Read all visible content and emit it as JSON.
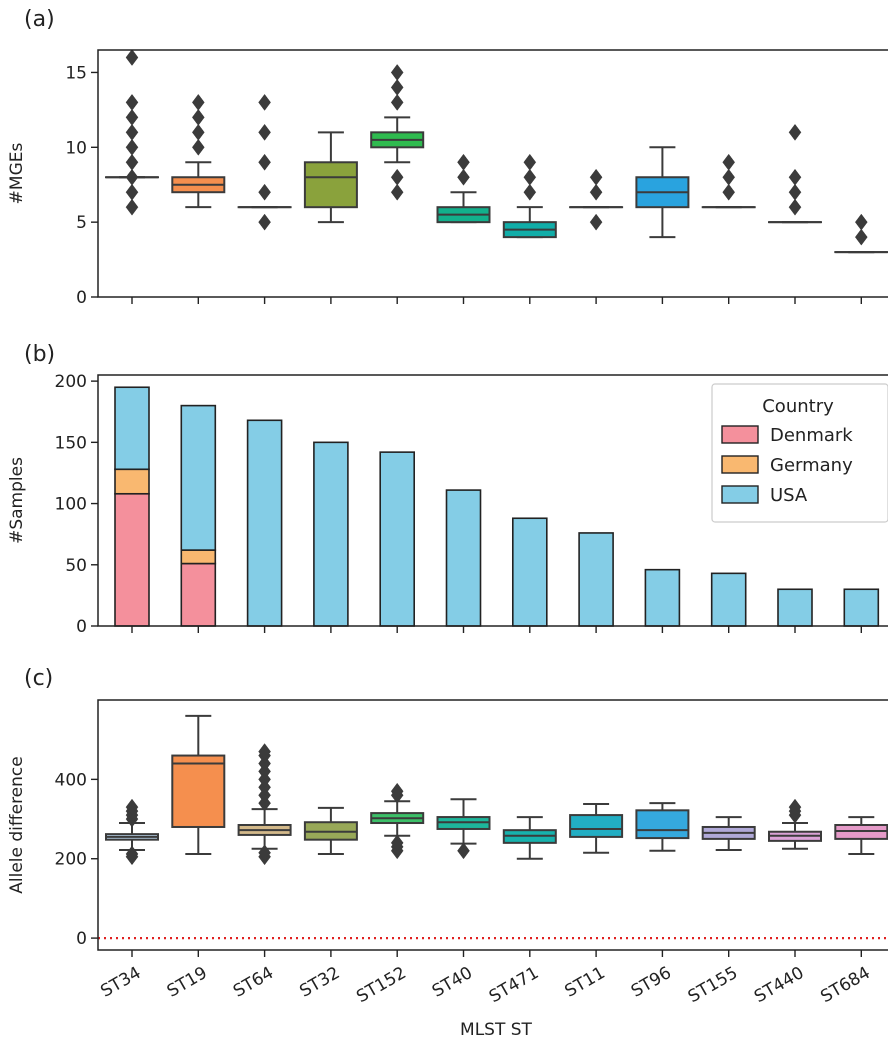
{
  "figure": {
    "xlabel": "MLST ST"
  },
  "chart_data": [
    {
      "panel": "(a)",
      "type": "box",
      "ylabel": "#MGEs",
      "ylim": [
        0,
        16.5
      ],
      "yticks": [
        0,
        5,
        10,
        15
      ],
      "categories": [
        "ST34",
        "ST19",
        "ST64",
        "ST32",
        "ST152",
        "ST40",
        "ST471",
        "ST11",
        "ST96",
        "ST155",
        "ST440",
        "ST684"
      ],
      "colors": [
        "#cfe0ef",
        "#f58f4e",
        "#cfdfb0",
        "#8aa23c",
        "#2fbb4f",
        "#12b08c",
        "#11ada8",
        "#2ba6b8",
        "#29a3df",
        "#86b8d8",
        "#a39ec9",
        "#e8a3cf"
      ],
      "boxes": [
        {
          "q1": 8,
          "median": 8,
          "q3": 8,
          "whislo": 8,
          "whishi": 8,
          "fliers": [
            6,
            7,
            8,
            9,
            10,
            11,
            12,
            13,
            16
          ]
        },
        {
          "q1": 7,
          "median": 7.5,
          "q3": 8,
          "whislo": 6,
          "whishi": 9,
          "fliers": [
            10,
            11,
            12,
            13
          ]
        },
        {
          "q1": 6,
          "median": 6,
          "q3": 6,
          "whislo": 6,
          "whishi": 6,
          "fliers": [
            5,
            7,
            9,
            11,
            13
          ]
        },
        {
          "q1": 6,
          "median": 8,
          "q3": 9,
          "whislo": 5,
          "whishi": 11,
          "fliers": []
        },
        {
          "q1": 10,
          "median": 10.5,
          "q3": 11,
          "whislo": 9,
          "whishi": 12,
          "fliers": [
            7,
            8,
            13,
            14,
            15
          ]
        },
        {
          "q1": 5,
          "median": 5.5,
          "q3": 6,
          "whislo": 5,
          "whishi": 7,
          "fliers": [
            8,
            9
          ]
        },
        {
          "q1": 4,
          "median": 4.5,
          "q3": 5,
          "whislo": 4,
          "whishi": 6,
          "fliers": [
            7,
            8,
            9
          ]
        },
        {
          "q1": 6,
          "median": 6,
          "q3": 6,
          "whislo": 6,
          "whishi": 6,
          "fliers": [
            5,
            7,
            8
          ]
        },
        {
          "q1": 6,
          "median": 7,
          "q3": 8,
          "whislo": 4,
          "whishi": 10,
          "fliers": []
        },
        {
          "q1": 6,
          "median": 6,
          "q3": 6,
          "whislo": 6,
          "whishi": 6,
          "fliers": [
            7,
            8,
            9
          ]
        },
        {
          "q1": 5,
          "median": 5,
          "q3": 5,
          "whislo": 5,
          "whishi": 5,
          "fliers": [
            6,
            7,
            8,
            11
          ]
        },
        {
          "q1": 3,
          "median": 3,
          "q3": 3,
          "whislo": 3,
          "whishi": 3,
          "fliers": [
            4,
            5
          ]
        }
      ]
    },
    {
      "panel": "(b)",
      "type": "bar",
      "stacked": true,
      "ylabel": "#Samples",
      "ylim": [
        0,
        205
      ],
      "yticks": [
        0,
        50,
        100,
        150,
        200
      ],
      "categories": [
        "ST34",
        "ST19",
        "ST64",
        "ST32",
        "ST152",
        "ST40",
        "ST471",
        "ST11",
        "ST96",
        "ST155",
        "ST440",
        "ST684"
      ],
      "series": [
        {
          "name": "Denmark",
          "color": "#f4909c",
          "values": [
            108,
            51,
            0,
            0,
            0,
            0,
            0,
            0,
            0,
            0,
            0,
            0
          ]
        },
        {
          "name": "Germany",
          "color": "#f9b870",
          "values": [
            20,
            11,
            0,
            0,
            0,
            0,
            0,
            0,
            0,
            0,
            0,
            0
          ]
        },
        {
          "name": "USA",
          "color": "#84cde6",
          "values": [
            67,
            118,
            168,
            150,
            142,
            111,
            88,
            76,
            46,
            43,
            30,
            30
          ]
        }
      ],
      "legend": {
        "title": "Country",
        "position": "top-right"
      }
    },
    {
      "panel": "(c)",
      "type": "box",
      "ylabel": "Allele difference",
      "ylim": [
        -30,
        600
      ],
      "yticks": [
        0,
        200,
        400
      ],
      "reference_line": {
        "y": 0,
        "color": "#e02020",
        "style": "dotted"
      },
      "categories": [
        "ST34",
        "ST19",
        "ST64",
        "ST32",
        "ST152",
        "ST40",
        "ST471",
        "ST11",
        "ST96",
        "ST155",
        "ST440",
        "ST684"
      ],
      "colors": [
        "#b8d3ea",
        "#f58f4e",
        "#d3b98a",
        "#98a858",
        "#3cbf68",
        "#1db69b",
        "#17b2ad",
        "#22aec3",
        "#35a9de",
        "#b0a9d8",
        "#dba2d8",
        "#e59ac8"
      ],
      "boxes": [
        {
          "q1": 248,
          "median": 255,
          "q3": 262,
          "whislo": 222,
          "whishi": 290,
          "fliers": [
            205,
            212,
            300,
            310,
            320,
            330
          ]
        },
        {
          "q1": 280,
          "median": 440,
          "q3": 460,
          "whislo": 212,
          "whishi": 560,
          "fliers": []
        },
        {
          "q1": 260,
          "median": 272,
          "q3": 285,
          "whislo": 225,
          "whishi": 325,
          "fliers": [
            205,
            215,
            340,
            360,
            380,
            400,
            420,
            440,
            460,
            470
          ]
        },
        {
          "q1": 248,
          "median": 268,
          "q3": 292,
          "whislo": 212,
          "whishi": 328,
          "fliers": []
        },
        {
          "q1": 290,
          "median": 302,
          "q3": 315,
          "whislo": 258,
          "whishi": 345,
          "fliers": [
            220,
            230,
            240,
            360,
            370
          ]
        },
        {
          "q1": 275,
          "median": 292,
          "q3": 305,
          "whislo": 238,
          "whishi": 350,
          "fliers": [
            220
          ]
        },
        {
          "q1": 240,
          "median": 258,
          "q3": 272,
          "whislo": 200,
          "whishi": 305,
          "fliers": []
        },
        {
          "q1": 255,
          "median": 275,
          "q3": 310,
          "whislo": 215,
          "whishi": 338,
          "fliers": []
        },
        {
          "q1": 252,
          "median": 272,
          "q3": 322,
          "whislo": 220,
          "whishi": 340,
          "fliers": []
        },
        {
          "q1": 250,
          "median": 265,
          "q3": 280,
          "whislo": 222,
          "whishi": 305,
          "fliers": []
        },
        {
          "q1": 245,
          "median": 258,
          "q3": 268,
          "whislo": 225,
          "whishi": 290,
          "fliers": [
            310,
            320,
            330
          ]
        },
        {
          "q1": 250,
          "median": 270,
          "q3": 285,
          "whislo": 212,
          "whishi": 305,
          "fliers": []
        }
      ]
    }
  ]
}
